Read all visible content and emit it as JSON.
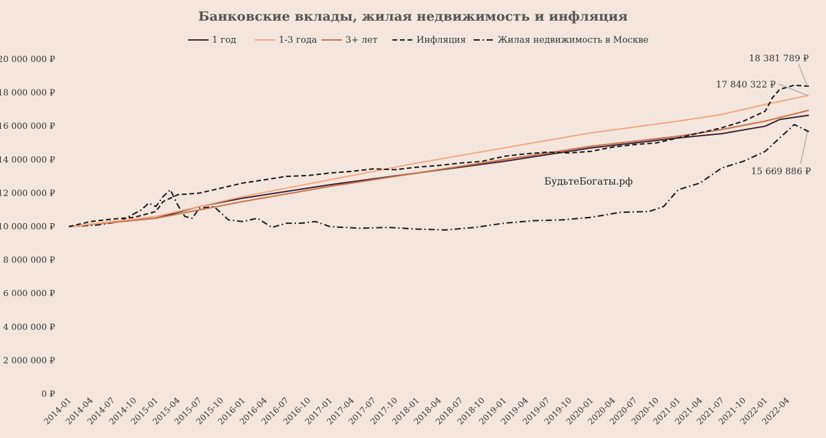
{
  "chart_data": {
    "type": "line",
    "title": "Банковские вклады, жилая недвижимость и инфляция",
    "xlabel": "",
    "ylabel": "",
    "ylim": [
      0,
      20000000
    ],
    "y_ticks": [
      "0 ₽",
      "2 000 000 ₽",
      "4 000 000 ₽",
      "6 000 000 ₽",
      "8 000 000 ₽",
      "10 000 000 ₽",
      "12 000 000 ₽",
      "14 000 000 ₽",
      "16 000 000 ₽",
      "18 000 000 ₽",
      "20 000 000 ₽"
    ],
    "y_tick_values": [
      0,
      2000000,
      4000000,
      6000000,
      8000000,
      10000000,
      12000000,
      14000000,
      16000000,
      18000000,
      20000000
    ],
    "x_ticks": [
      "2014-01",
      "2014-04",
      "2014-07",
      "2014-10",
      "2015-01",
      "2015-04",
      "2015-07",
      "2015-10",
      "2016-01",
      "2016-04",
      "2016-07",
      "2016-10",
      "2017-01",
      "2017-04",
      "2017-07",
      "2017-10",
      "2018-01",
      "2018-04",
      "2018-07",
      "2018-10",
      "2019-01",
      "2019-04",
      "2019-07",
      "2019-10",
      "2020-01",
      "2020-04",
      "2020-07",
      "2020-10",
      "2021-01",
      "2021-04",
      "2021-07",
      "2021-10",
      "2022-01",
      "2022-04"
    ],
    "x_months": [
      0,
      3,
      6,
      9,
      12,
      15,
      18,
      21,
      24,
      27,
      30,
      33,
      36,
      39,
      42,
      45,
      48,
      51,
      54,
      57,
      60,
      63,
      66,
      69,
      72,
      75,
      78,
      81,
      84,
      87,
      90,
      93,
      96,
      99
    ],
    "x_max_month": 102,
    "grid": false,
    "legend_position": "top",
    "series": [
      {
        "name": "1 год",
        "color": "#3b2233",
        "dash": "solid",
        "points": [
          [
            0,
            10000000
          ],
          [
            12,
            10500000
          ],
          [
            18,
            11200000
          ],
          [
            24,
            11700000
          ],
          [
            36,
            12500000
          ],
          [
            48,
            13200000
          ],
          [
            60,
            13900000
          ],
          [
            72,
            14700000
          ],
          [
            84,
            15300000
          ],
          [
            90,
            15550000
          ],
          [
            96,
            16000000
          ],
          [
            98,
            16400000
          ],
          [
            102,
            16650000
          ]
        ]
      },
      {
        "name": "1-3 года",
        "color": "#f2a882",
        "dash": "solid",
        "points": [
          [
            0,
            10000000
          ],
          [
            12,
            10600000
          ],
          [
            24,
            11800000
          ],
          [
            36,
            12800000
          ],
          [
            48,
            13800000
          ],
          [
            60,
            14700000
          ],
          [
            72,
            15600000
          ],
          [
            84,
            16300000
          ],
          [
            90,
            16700000
          ],
          [
            96,
            17300000
          ],
          [
            102,
            17840322
          ]
        ]
      },
      {
        "name": "3+ лет",
        "color": "#c8724a",
        "dash": "solid",
        "points": [
          [
            0,
            10000000
          ],
          [
            12,
            10500000
          ],
          [
            24,
            11500000
          ],
          [
            36,
            12400000
          ],
          [
            48,
            13200000
          ],
          [
            60,
            14000000
          ],
          [
            72,
            14800000
          ],
          [
            84,
            15400000
          ],
          [
            90,
            15800000
          ],
          [
            96,
            16300000
          ],
          [
            102,
            16950000
          ]
        ]
      },
      {
        "name": "Инфляция",
        "color": "#1a1a1a",
        "dash": "dashed",
        "points": [
          [
            0,
            10000000
          ],
          [
            3,
            10300000
          ],
          [
            6,
            10450000
          ],
          [
            9,
            10550000
          ],
          [
            12,
            10900000
          ],
          [
            13,
            11500000
          ],
          [
            15,
            11900000
          ],
          [
            18,
            12000000
          ],
          [
            21,
            12300000
          ],
          [
            24,
            12600000
          ],
          [
            27,
            12800000
          ],
          [
            30,
            13000000
          ],
          [
            33,
            13050000
          ],
          [
            36,
            13200000
          ],
          [
            39,
            13300000
          ],
          [
            42,
            13450000
          ],
          [
            45,
            13400000
          ],
          [
            48,
            13550000
          ],
          [
            51,
            13650000
          ],
          [
            54,
            13800000
          ],
          [
            57,
            13900000
          ],
          [
            60,
            14200000
          ],
          [
            63,
            14350000
          ],
          [
            66,
            14450000
          ],
          [
            69,
            14400000
          ],
          [
            72,
            14500000
          ],
          [
            75,
            14750000
          ],
          [
            78,
            14900000
          ],
          [
            81,
            15000000
          ],
          [
            84,
            15300000
          ],
          [
            87,
            15600000
          ],
          [
            90,
            15900000
          ],
          [
            93,
            16300000
          ],
          [
            96,
            16900000
          ],
          [
            97,
            17700000
          ],
          [
            98,
            18200000
          ],
          [
            100,
            18450000
          ],
          [
            102,
            18381789
          ]
        ]
      },
      {
        "name": "Жилая недвижимость в Москве",
        "color": "#1a1a1a",
        "dash": "dashdot",
        "points": [
          [
            0,
            10000000
          ],
          [
            4,
            10100000
          ],
          [
            7,
            10300000
          ],
          [
            10,
            11000000
          ],
          [
            11,
            11400000
          ],
          [
            12,
            11200000
          ],
          [
            13,
            11800000
          ],
          [
            14,
            12200000
          ],
          [
            15,
            11300000
          ],
          [
            16,
            10600000
          ],
          [
            17,
            10500000
          ],
          [
            18,
            11100000
          ],
          [
            20,
            11200000
          ],
          [
            22,
            10400000
          ],
          [
            24,
            10300000
          ],
          [
            26,
            10500000
          ],
          [
            28,
            9950000
          ],
          [
            30,
            10200000
          ],
          [
            32,
            10200000
          ],
          [
            34,
            10300000
          ],
          [
            36,
            10000000
          ],
          [
            40,
            9900000
          ],
          [
            44,
            9950000
          ],
          [
            48,
            9850000
          ],
          [
            52,
            9800000
          ],
          [
            56,
            9950000
          ],
          [
            60,
            10200000
          ],
          [
            64,
            10350000
          ],
          [
            68,
            10400000
          ],
          [
            72,
            10550000
          ],
          [
            76,
            10850000
          ],
          [
            80,
            10900000
          ],
          [
            82,
            11200000
          ],
          [
            84,
            12200000
          ],
          [
            87,
            12600000
          ],
          [
            90,
            13500000
          ],
          [
            93,
            13900000
          ],
          [
            96,
            14500000
          ],
          [
            99,
            15700000
          ],
          [
            100,
            16100000
          ],
          [
            102,
            15669886
          ]
        ]
      }
    ],
    "annotations": [
      {
        "text": "18 381 789 ₽",
        "series": "Инфляция"
      },
      {
        "text": "17 840 322 ₽",
        "series": "1-3 года"
      },
      {
        "text": "15 669 886 ₽",
        "series": "Жилая недвижимость в Москве"
      }
    ],
    "watermark": "БудьтеБогаты.рф"
  }
}
